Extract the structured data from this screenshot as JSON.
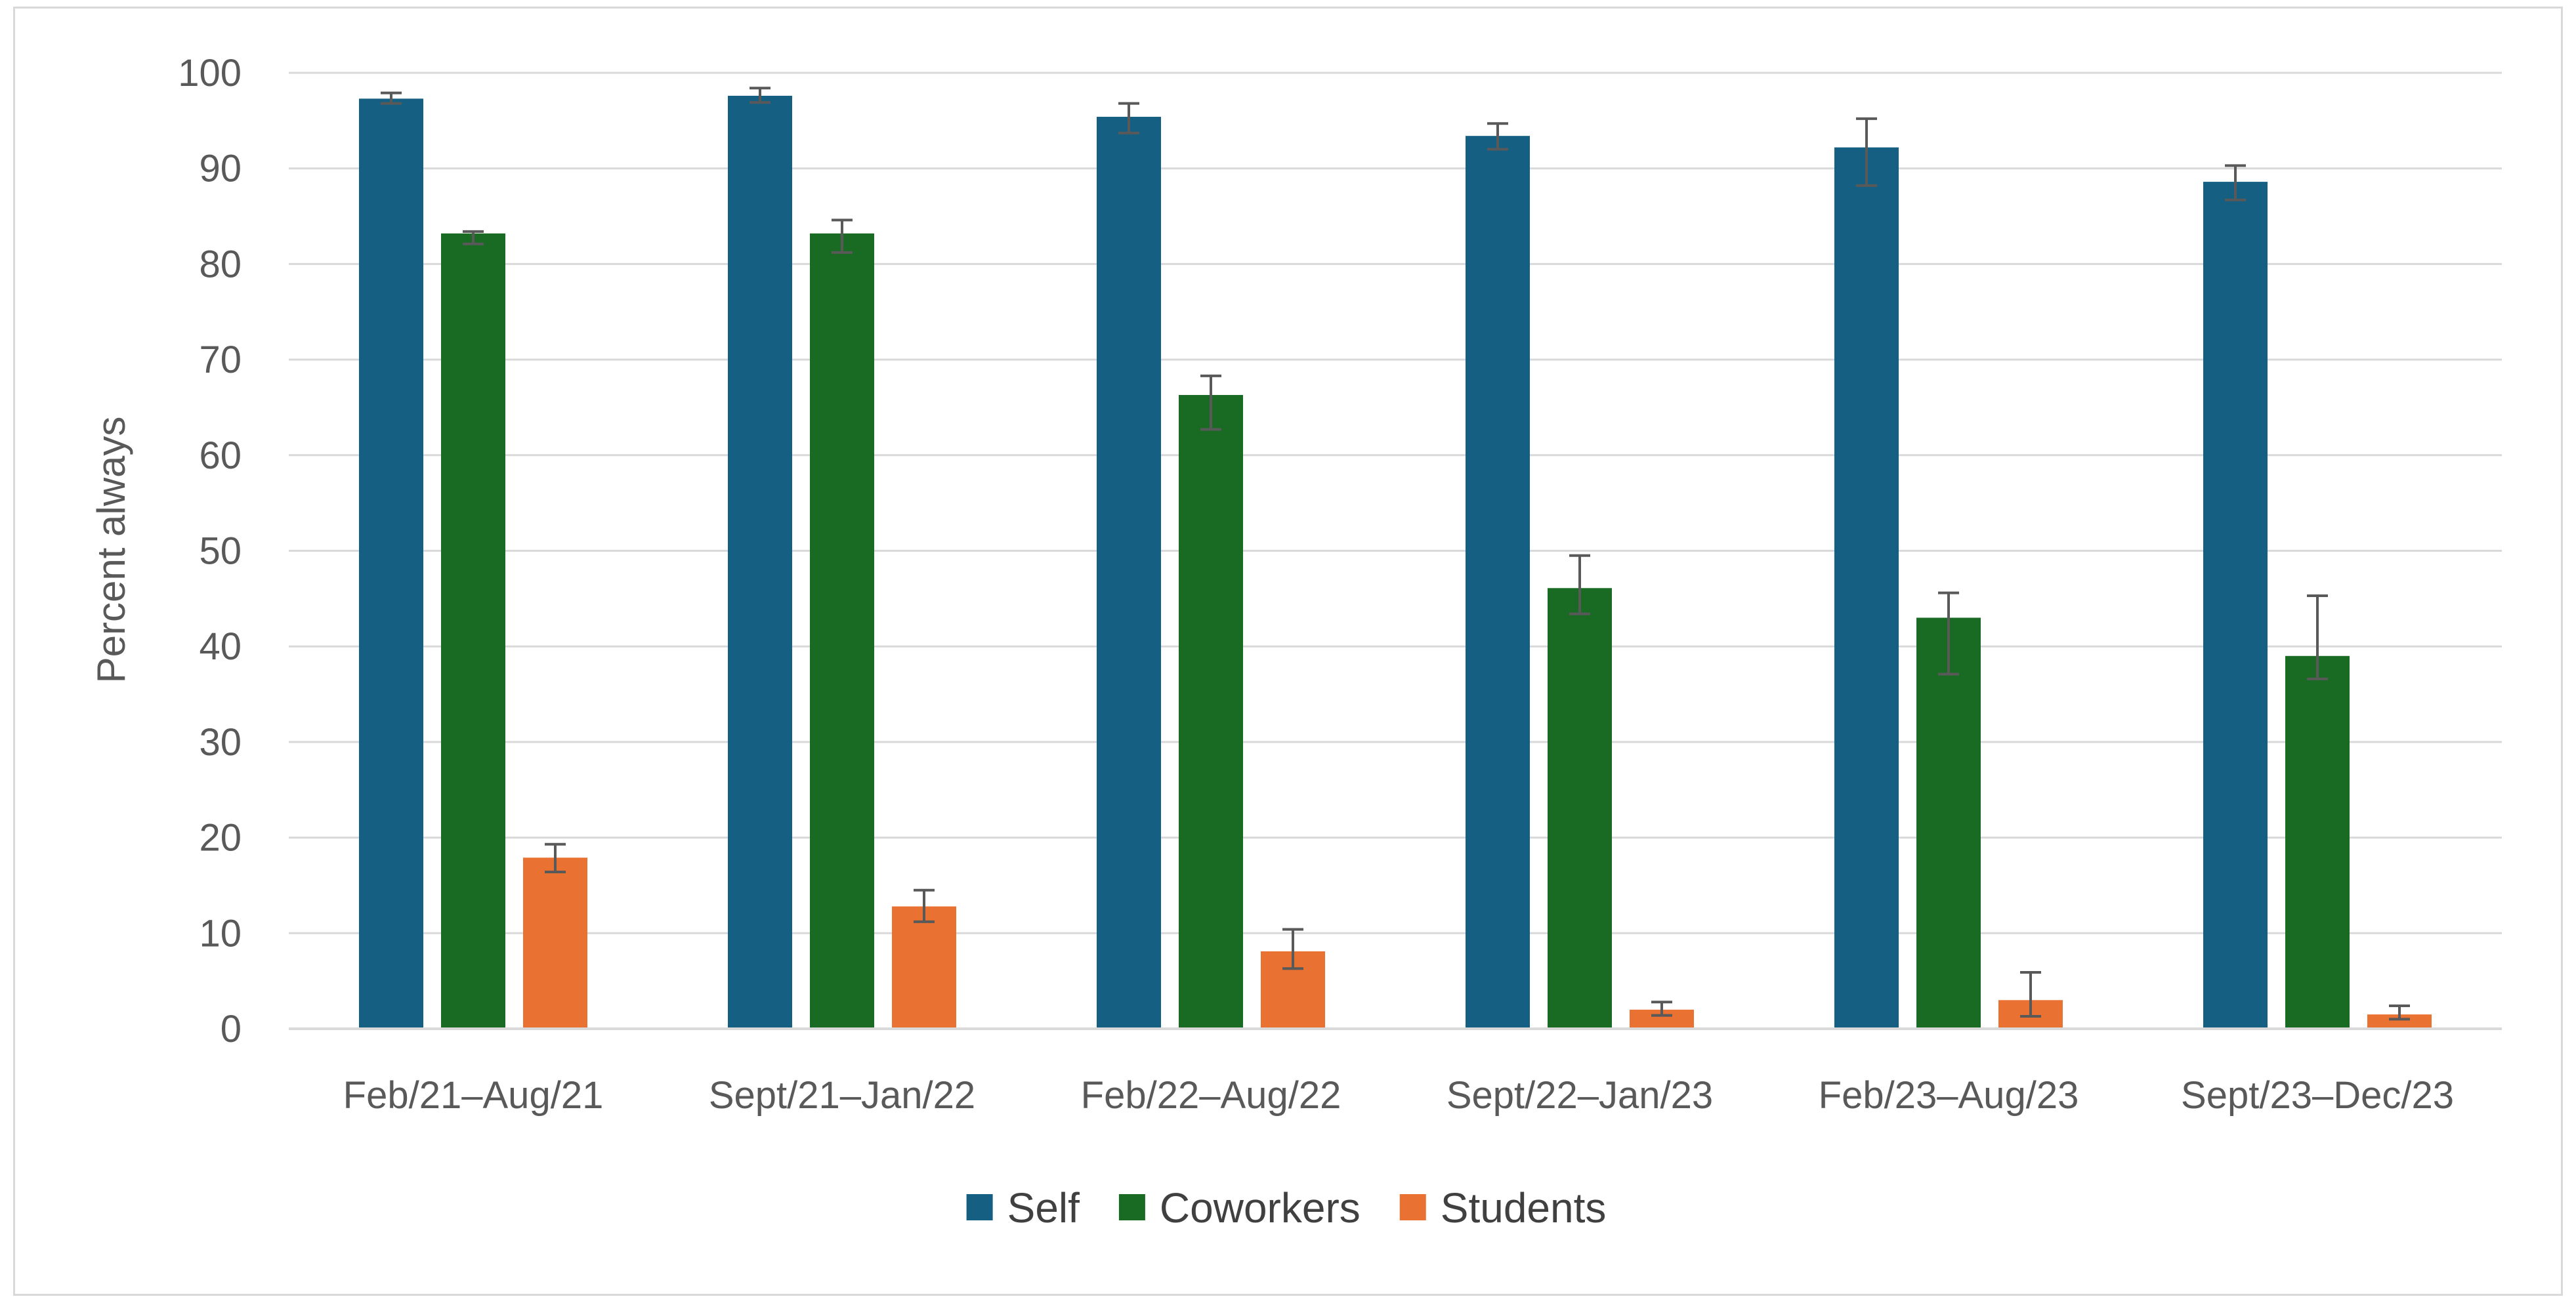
{
  "chart_data": {
    "type": "bar",
    "title": "",
    "xlabel": "",
    "ylabel": "Percent always",
    "ylim": [
      0,
      100
    ],
    "yticks": [
      0,
      10,
      20,
      30,
      40,
      50,
      60,
      70,
      80,
      90,
      100
    ],
    "grid": true,
    "legend_position": "bottom-center",
    "categories": [
      "Feb/21–Aug/21",
      "Sept/21–Jan/22",
      "Feb/22–Aug/22",
      "Sept/22–Jan/23",
      "Feb/23–Aug/23",
      "Sept/23–Dec/23"
    ],
    "series": [
      {
        "name": "Self",
        "color": "#156082",
        "values": [
          97.3,
          97.6,
          95.4,
          93.4,
          92.2,
          88.6
        ],
        "error_low": [
          96.8,
          96.9,
          93.7,
          92.0,
          88.2,
          86.7
        ],
        "error_high": [
          97.9,
          98.4,
          96.8,
          94.7,
          95.2,
          90.3
        ]
      },
      {
        "name": "Coworkers",
        "color": "#196B24",
        "values": [
          83.2,
          83.2,
          66.3,
          46.1,
          43.0,
          39.0
        ],
        "error_low": [
          82.1,
          81.2,
          62.7,
          43.4,
          37.1,
          36.6
        ],
        "error_high": [
          83.4,
          84.6,
          68.3,
          49.5,
          45.6,
          45.3
        ]
      },
      {
        "name": "Students",
        "color": "#E97132",
        "values": [
          17.9,
          12.8,
          8.1,
          2.0,
          3.0,
          1.5
        ],
        "error_low": [
          16.4,
          11.2,
          6.3,
          1.4,
          1.3,
          1.0
        ],
        "error_high": [
          19.3,
          14.5,
          10.4,
          2.8,
          5.9,
          2.4
        ]
      }
    ]
  }
}
